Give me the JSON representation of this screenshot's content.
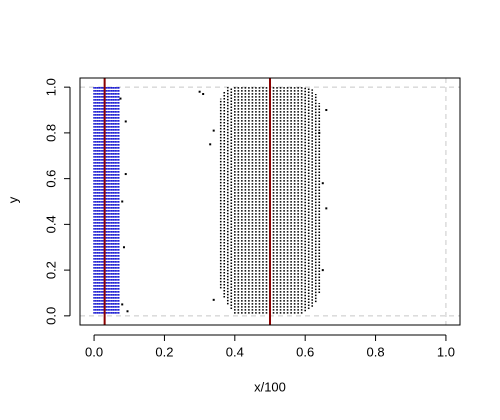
{
  "chart_data": {
    "type": "segments",
    "xlabel": "x/100",
    "ylabel": "y",
    "xlim": [
      -0.04,
      1.04
    ],
    "ylim": [
      -0.04,
      1.04
    ],
    "xticks": [
      {
        "value": 0,
        "label": "0.0"
      },
      0.2,
      0.4,
      0.6,
      0.8,
      {
        "value": 1,
        "label": "1.0"
      }
    ],
    "yticks": [
      {
        "value": 0,
        "label": "0.0"
      },
      0.2,
      0.4,
      0.6,
      0.8,
      {
        "value": 1,
        "label": "1.0"
      }
    ],
    "series": [
      {
        "color": "#0000cd",
        "x": [
          0,
          0.005,
          0.01,
          0.015,
          0.02,
          0.025,
          0.03,
          0.035,
          0.04,
          0.045,
          0.05,
          0.055,
          0.06,
          0.065,
          0.07
        ],
        "y0": [
          0.01,
          0.01,
          0.01,
          0.01,
          0.01,
          0.01,
          0.01,
          0.01,
          0.01,
          0.01,
          0.01,
          0.01,
          0.01,
          0.01,
          0.01
        ],
        "y1": [
          1,
          1,
          1,
          1,
          1,
          1,
          1,
          1,
          1,
          1,
          1,
          1,
          1,
          1,
          1
        ]
      },
      {
        "color": "#000000",
        "x": [
          0.36,
          0.37,
          0.38,
          0.39,
          0.4,
          0.41,
          0.42,
          0.43,
          0.44,
          0.45,
          0.46,
          0.47,
          0.48,
          0.49,
          0.5,
          0.51,
          0.52,
          0.53,
          0.54,
          0.55,
          0.56,
          0.57,
          0.58,
          0.59,
          0.6,
          0.61,
          0.62,
          0.63,
          0.64
        ],
        "y0": [
          0.12,
          0.08,
          0.05,
          0.03,
          0.01,
          0.01,
          0.01,
          0.01,
          0.01,
          0.01,
          0.01,
          0.01,
          0.01,
          0.01,
          0.01,
          0.01,
          0.01,
          0.01,
          0.01,
          0.01,
          0.01,
          0.01,
          0.01,
          0.01,
          0.02,
          0.03,
          0.04,
          0.06,
          0.1
        ],
        "y1": [
          0.95,
          0.98,
          1,
          1,
          1,
          1,
          1,
          1,
          1,
          1,
          1,
          1,
          1,
          1,
          1,
          1,
          1,
          1,
          1,
          1,
          1,
          1,
          1,
          1,
          1,
          1,
          0.99,
          0.97,
          0.93
        ]
      }
    ],
    "points": {
      "color": "#000000",
      "x": [
        0.34,
        0.33,
        0.34,
        0.66,
        0.65,
        0.64,
        0.3,
        0.31,
        0.08,
        0.09,
        0.08,
        0.095,
        0.085,
        0.65,
        0.66,
        0.075,
        0.09
      ],
      "y": [
        0.07,
        0.75,
        0.81,
        0.47,
        0.58,
        0.8,
        0.98,
        0.97,
        0.5,
        0.62,
        0.05,
        0.02,
        0.3,
        0.2,
        0.9,
        0.95,
        0.85
      ]
    },
    "vlines": {
      "color": "#8b0000",
      "x": [
        0.03,
        0.5
      ]
    },
    "ref_lines": {
      "color": "#c8c8c8",
      "h": [
        0,
        1
      ],
      "v": [
        1
      ]
    }
  }
}
